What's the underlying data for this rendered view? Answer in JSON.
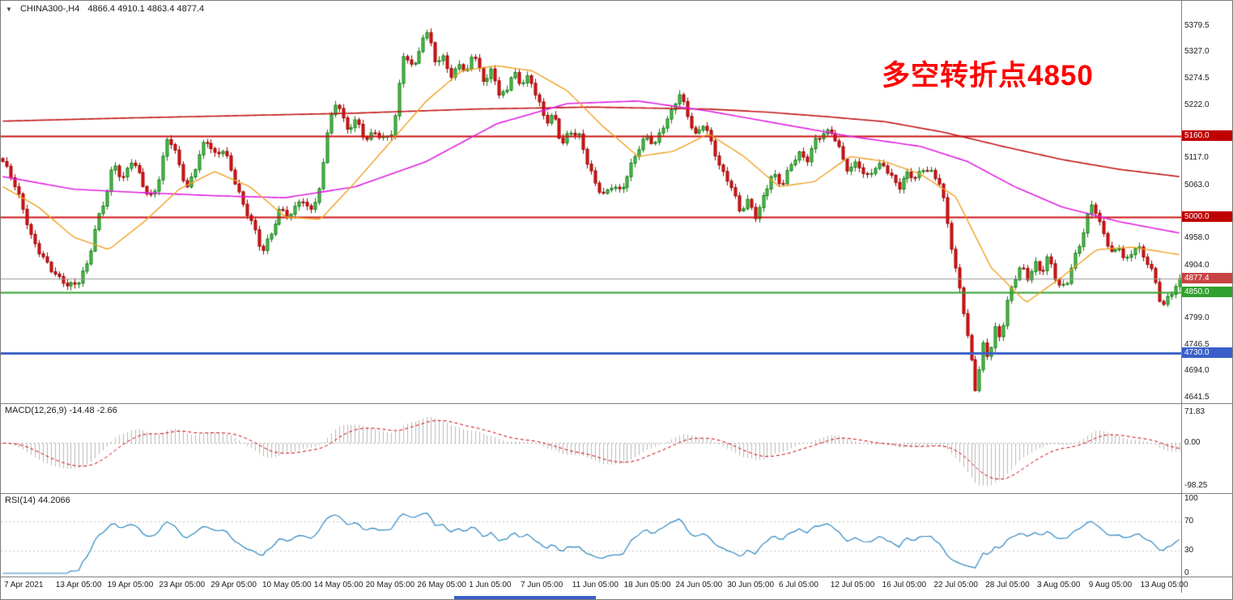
{
  "title": {
    "symbol_period": "CHINA300-,H4",
    "ohlc_text": "4866.4 4910.1 4863.4 4877.4"
  },
  "annotation": {
    "text": "多空转折点4850",
    "color": "#FF0000"
  },
  "indicator_labels": {
    "macd": "MACD(12,26,9) -14.48 -2.66",
    "rsi": "RSI(14) 44.2066"
  },
  "badges": [
    {
      "value": "5160.0",
      "price": 5160.0,
      "bg": "#C00000"
    },
    {
      "value": "5000.0",
      "price": 5000.0,
      "bg": "#C00000"
    },
    {
      "value": "4877.4",
      "price": 4877.4,
      "bg": "#C84444"
    },
    {
      "value": "4850.0",
      "price": 4850.0,
      "bg": "#2FA12F"
    },
    {
      "value": "4730.0",
      "price": 4730.0,
      "bg": "#3A5FC8"
    }
  ],
  "chart_data": {
    "type": "candlestick",
    "symbol": "CHINA300-",
    "timeframe": "H4",
    "current_bar": {
      "open": 4866.4,
      "high": 4910.1,
      "low": 4863.4,
      "close": 4877.4
    },
    "y_range": [
      4630,
      5429
    ],
    "y_axis_labels": [
      5379.5,
      5327.0,
      5274.5,
      5222.0,
      5117.0,
      5063.0,
      4958.0,
      4904.0,
      4799.0,
      4746.5,
      4694.0,
      4641.5
    ],
    "x_labels": [
      "7 Apr 2021",
      "13 Apr 05:00",
      "19 Apr 05:00",
      "23 Apr 05:00",
      "29 Apr 05:00",
      "10 May 05:00",
      "14 May 05:00",
      "20 May 05:00",
      "26 May 05:00",
      "1 Jun 05:00",
      "7 Jun 05:00",
      "11 Jun 05:00",
      "18 Jun 05:00",
      "24 Jun 05:00",
      "30 Jun 05:00",
      "6 Jul 05:00",
      "12 Jul 05:00",
      "16 Jul 05:00",
      "22 Jul 05:00",
      "28 Jul 05:00",
      "3 Aug 05:00",
      "9 Aug 05:00",
      "13 Aug 05:00"
    ],
    "bars": 295,
    "key_points": {
      "high": 5379.5,
      "high_time": "26 May",
      "low": 4641.5,
      "low_time": "27 Jul",
      "last_close": 4877.4
    },
    "levels": [
      {
        "price": 5160.0,
        "color": "#CC1010",
        "width": 2,
        "role": "resistance"
      },
      {
        "price": 5000.0,
        "color": "#CC1010",
        "width": 2,
        "role": "support-resistance"
      },
      {
        "price": 4850.0,
        "color": "#2EA12E",
        "width": 2,
        "role": "pivot-line"
      },
      {
        "price": 4730.0,
        "color": "#3A5FC8",
        "width": 3,
        "role": "support"
      },
      {
        "price": 4877.4,
        "color": "#999999",
        "width": 1,
        "role": "bid-price"
      }
    ],
    "price_path": [
      [
        0,
        5110
      ],
      [
        0.008,
        5072
      ],
      [
        0.016,
        5022
      ],
      [
        0.024,
        4962
      ],
      [
        0.032,
        4930
      ],
      [
        0.04,
        4898
      ],
      [
        0.048,
        4872
      ],
      [
        0.056,
        4860
      ],
      [
        0.064,
        4872
      ],
      [
        0.072,
        4912
      ],
      [
        0.08,
        4992
      ],
      [
        0.088,
        5042
      ],
      [
        0.094,
        5108
      ],
      [
        0.101,
        5068
      ],
      [
        0.108,
        5118
      ],
      [
        0.116,
        5088
      ],
      [
        0.124,
        5032
      ],
      [
        0.132,
        5062
      ],
      [
        0.14,
        5162
      ],
      [
        0.148,
        5122
      ],
      [
        0.156,
        5056
      ],
      [
        0.164,
        5102
      ],
      [
        0.172,
        5152
      ],
      [
        0.18,
        5122
      ],
      [
        0.188,
        5138
      ],
      [
        0.196,
        5082
      ],
      [
        0.204,
        5022
      ],
      [
        0.212,
        4982
      ],
      [
        0.22,
        4928
      ],
      [
        0.228,
        4972
      ],
      [
        0.236,
        5022
      ],
      [
        0.244,
        4996
      ],
      [
        0.252,
        5032
      ],
      [
        0.26,
        5012
      ],
      [
        0.268,
        5042
      ],
      [
        0.276,
        5182
      ],
      [
        0.284,
        5232
      ],
      [
        0.292,
        5166
      ],
      [
        0.3,
        5192
      ],
      [
        0.308,
        5156
      ],
      [
        0.316,
        5172
      ],
      [
        0.324,
        5152
      ],
      [
        0.332,
        5168
      ],
      [
        0.34,
        5322
      ],
      [
        0.348,
        5298
      ],
      [
        0.356,
        5348
      ],
      [
        0.362,
        5376
      ],
      [
        0.368,
        5292
      ],
      [
        0.374,
        5322
      ],
      [
        0.38,
        5266
      ],
      [
        0.386,
        5312
      ],
      [
        0.392,
        5286
      ],
      [
        0.398,
        5322
      ],
      [
        0.404,
        5302
      ],
      [
        0.41,
        5256
      ],
      [
        0.416,
        5296
      ],
      [
        0.422,
        5236
      ],
      [
        0.428,
        5256
      ],
      [
        0.434,
        5292
      ],
      [
        0.44,
        5266
      ],
      [
        0.447,
        5276
      ],
      [
        0.454,
        5232
      ],
      [
        0.461,
        5186
      ],
      [
        0.468,
        5206
      ],
      [
        0.475,
        5146
      ],
      [
        0.482,
        5172
      ],
      [
        0.49,
        5156
      ],
      [
        0.497,
        5102
      ],
      [
        0.504,
        5062
      ],
      [
        0.511,
        5046
      ],
      [
        0.518,
        5068
      ],
      [
        0.525,
        5048
      ],
      [
        0.533,
        5092
      ],
      [
        0.54,
        5132
      ],
      [
        0.547,
        5162
      ],
      [
        0.554,
        5148
      ],
      [
        0.561,
        5182
      ],
      [
        0.568,
        5206
      ],
      [
        0.575,
        5242
      ],
      [
        0.582,
        5196
      ],
      [
        0.589,
        5162
      ],
      [
        0.596,
        5192
      ],
      [
        0.603,
        5142
      ],
      [
        0.611,
        5086
      ],
      [
        0.619,
        5058
      ],
      [
        0.626,
        5012
      ],
      [
        0.633,
        5036
      ],
      [
        0.64,
        5002
      ],
      [
        0.647,
        5042
      ],
      [
        0.654,
        5082
      ],
      [
        0.662,
        5060
      ],
      [
        0.669,
        5102
      ],
      [
        0.676,
        5132
      ],
      [
        0.683,
        5112
      ],
      [
        0.69,
        5148
      ],
      [
        0.697,
        5162
      ],
      [
        0.705,
        5168
      ],
      [
        0.712,
        5132
      ],
      [
        0.719,
        5092
      ],
      [
        0.726,
        5112
      ],
      [
        0.733,
        5072
      ],
      [
        0.74,
        5092
      ],
      [
        0.748,
        5106
      ],
      [
        0.755,
        5082
      ],
      [
        0.762,
        5062
      ],
      [
        0.769,
        5086
      ],
      [
        0.776,
        5072
      ],
      [
        0.783,
        5096
      ],
      [
        0.79,
        5088
      ],
      [
        0.797,
        5070
      ],
      [
        0.803,
        4985
      ],
      [
        0.809,
        4900
      ],
      [
        0.815,
        4828
      ],
      [
        0.821,
        4742
      ],
      [
        0.827,
        4652
      ],
      [
        0.833,
        4750
      ],
      [
        0.838,
        4722
      ],
      [
        0.843,
        4782
      ],
      [
        0.848,
        4756
      ],
      [
        0.853,
        4822
      ],
      [
        0.859,
        4868
      ],
      [
        0.865,
        4902
      ],
      [
        0.871,
        4880
      ],
      [
        0.877,
        4912
      ],
      [
        0.883,
        4892
      ],
      [
        0.889,
        4922
      ],
      [
        0.894,
        4880
      ],
      [
        0.899,
        4852
      ],
      [
        0.905,
        4872
      ],
      [
        0.911,
        4922
      ],
      [
        0.917,
        4962
      ],
      [
        0.922,
        5006
      ],
      [
        0.926,
        5032
      ],
      [
        0.931,
        4990
      ],
      [
        0.937,
        4952
      ],
      [
        0.943,
        4922
      ],
      [
        0.949,
        4942
      ],
      [
        0.954,
        4912
      ],
      [
        0.959,
        4932
      ],
      [
        0.964,
        4946
      ],
      [
        0.969,
        4922
      ],
      [
        0.975,
        4898
      ],
      [
        0.98,
        4862
      ],
      [
        0.985,
        4816
      ],
      [
        0.991,
        4846
      ],
      [
        1,
        4877.4
      ]
    ],
    "ma_paths": [
      {
        "name": "ma-slow",
        "color": "#C01414",
        "width": 1.6,
        "path": [
          [
            0,
            5190
          ],
          [
            0.1,
            5196
          ],
          [
            0.2,
            5201
          ],
          [
            0.3,
            5206
          ],
          [
            0.4,
            5214
          ],
          [
            0.5,
            5218
          ],
          [
            0.6,
            5214
          ],
          [
            0.65,
            5208
          ],
          [
            0.7,
            5199
          ],
          [
            0.75,
            5189
          ],
          [
            0.8,
            5168
          ],
          [
            0.85,
            5140
          ],
          [
            0.9,
            5114
          ],
          [
            0.95,
            5094
          ],
          [
            1,
            5080
          ]
        ]
      },
      {
        "name": "ma-medium",
        "color": "#E020E0",
        "width": 1.6,
        "path": [
          [
            0,
            5080
          ],
          [
            0.06,
            5055
          ],
          [
            0.12,
            5048
          ],
          [
            0.18,
            5042
          ],
          [
            0.24,
            5038
          ],
          [
            0.3,
            5060
          ],
          [
            0.36,
            5110
          ],
          [
            0.42,
            5185
          ],
          [
            0.48,
            5225
          ],
          [
            0.54,
            5230
          ],
          [
            0.6,
            5210
          ],
          [
            0.66,
            5185
          ],
          [
            0.72,
            5160
          ],
          [
            0.78,
            5140
          ],
          [
            0.82,
            5110
          ],
          [
            0.86,
            5060
          ],
          [
            0.9,
            5020
          ],
          [
            0.95,
            4990
          ],
          [
            1,
            4968
          ]
        ]
      },
      {
        "name": "ma-fast",
        "color": "#EFA020",
        "width": 1.4,
        "path": [
          [
            0,
            5060
          ],
          [
            0.03,
            5020
          ],
          [
            0.06,
            4960
          ],
          [
            0.09,
            4935
          ],
          [
            0.12,
            4990
          ],
          [
            0.15,
            5055
          ],
          [
            0.18,
            5090
          ],
          [
            0.21,
            5060
          ],
          [
            0.24,
            5000
          ],
          [
            0.27,
            4995
          ],
          [
            0.3,
            5070
          ],
          [
            0.33,
            5150
          ],
          [
            0.36,
            5230
          ],
          [
            0.39,
            5290
          ],
          [
            0.42,
            5300
          ],
          [
            0.45,
            5290
          ],
          [
            0.48,
            5250
          ],
          [
            0.51,
            5180
          ],
          [
            0.54,
            5120
          ],
          [
            0.57,
            5130
          ],
          [
            0.6,
            5165
          ],
          [
            0.63,
            5120
          ],
          [
            0.66,
            5060
          ],
          [
            0.69,
            5070
          ],
          [
            0.72,
            5120
          ],
          [
            0.75,
            5110
          ],
          [
            0.78,
            5085
          ],
          [
            0.81,
            5040
          ],
          [
            0.84,
            4900
          ],
          [
            0.87,
            4830
          ],
          [
            0.9,
            4880
          ],
          [
            0.93,
            4935
          ],
          [
            0.96,
            4940
          ],
          [
            1,
            4925
          ]
        ]
      }
    ],
    "style": {
      "up_fill": "#52C152",
      "up_border": "#0E7D0E",
      "down_fill": "#DE1414",
      "down_border": "#A00000",
      "histogram": "#B8B8B8",
      "macd_signal": "#CC0000",
      "rsi_line": "#2E86C1"
    },
    "indicators": {
      "macd": {
        "fast": 12,
        "slow": 26,
        "signal": 9,
        "current_main": -14.48,
        "current_signal": -2.66,
        "scale_labels": [
          "71.83",
          "0.00",
          "-98.25"
        ]
      },
      "rsi": {
        "period": 14,
        "current": 44.2066,
        "levels": [
          70,
          30
        ],
        "scale_labels": [
          "100",
          "70",
          "30",
          "0"
        ]
      }
    }
  }
}
